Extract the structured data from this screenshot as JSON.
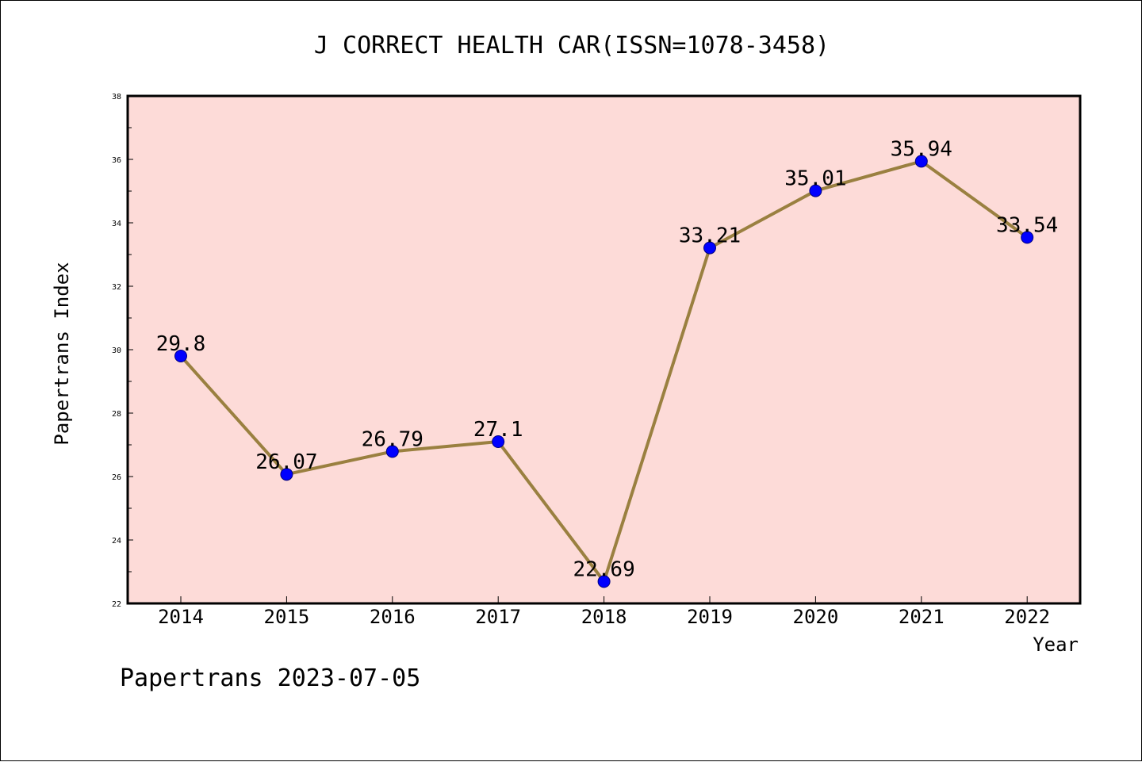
{
  "chart_data": {
    "type": "line",
    "title": "J CORRECT HEALTH CAR(ISSN=1078-3458)",
    "xlabel": "Year",
    "ylabel": "Papertrans Index",
    "categories": [
      "2014",
      "2015",
      "2016",
      "2017",
      "2018",
      "2019",
      "2020",
      "2021",
      "2022"
    ],
    "values": [
      29.8,
      26.07,
      26.79,
      27.1,
      22.69,
      33.21,
      35.01,
      35.94,
      33.54
    ],
    "data_labels": [
      "29.8",
      "26.07",
      "26.79",
      "27.1",
      "22.69",
      "33.21",
      "35.01",
      "35.94",
      "33.54"
    ],
    "ylim": [
      22,
      38
    ],
    "yticks": [
      "22",
      "24",
      "26",
      "28",
      "30",
      "32",
      "34",
      "36",
      "38"
    ],
    "grid": false,
    "legend": "none",
    "colors": {
      "plot_background": "#fddbd8",
      "line": "#9a8040",
      "marker": "#0000ff",
      "marker_edge": "#000080"
    }
  },
  "footer": "Papertrans 2023-07-05"
}
